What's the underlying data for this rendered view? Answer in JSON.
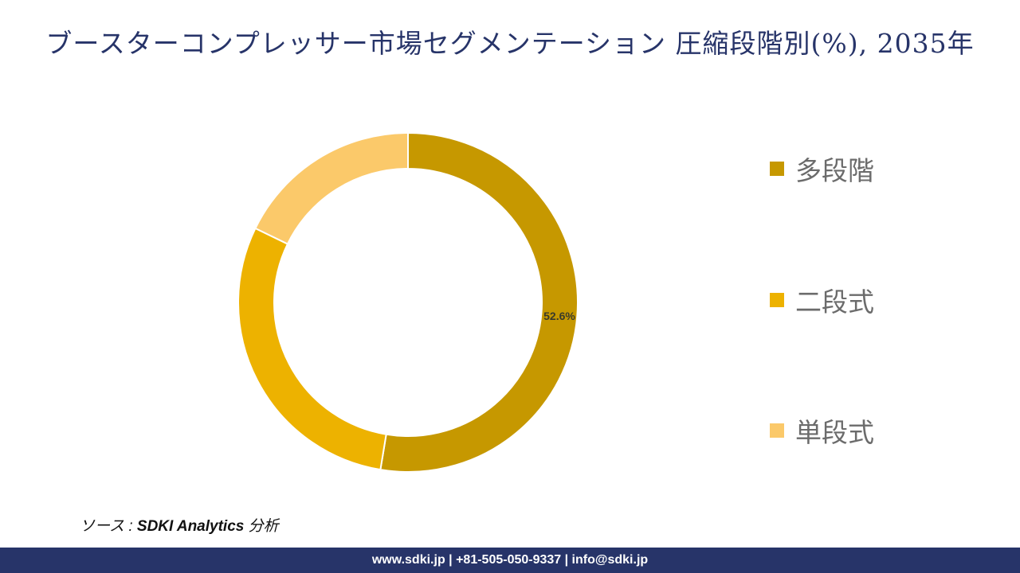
{
  "title": "ブースターコンプレッサー市場セグメンテーション 圧縮段階別(%), 2035年",
  "chart_data": {
    "type": "pie",
    "subtype": "donut",
    "title": "ブースターコンプレッサー市場セグメンテーション 圧縮段階別(%), 2035年",
    "categories": [
      "多段階",
      "二段式",
      "単段式"
    ],
    "values": [
      52.6,
      29.6,
      17.8
    ],
    "colors": [
      "#C69800",
      "#EDB200",
      "#FBC96A"
    ],
    "data_labels": [
      "52.6%",
      "",
      ""
    ],
    "legend_position": "right",
    "start_angle_deg": 0,
    "direction": "clockwise"
  },
  "legend": {
    "items": [
      {
        "label": "多段階",
        "color": "#C69800"
      },
      {
        "label": "二段式",
        "color": "#EDB200"
      },
      {
        "label": "単段式",
        "color": "#FBC96A"
      }
    ]
  },
  "source": {
    "prefix": "ソース :",
    "brand": "SDKI Analytics",
    "suffix": "分析"
  },
  "footer": {
    "text": "www.sdki.jp | +81-505-050-9337 | info@sdki.jp"
  },
  "colors": {
    "title": "#273469",
    "footer_bg": "#273469"
  }
}
